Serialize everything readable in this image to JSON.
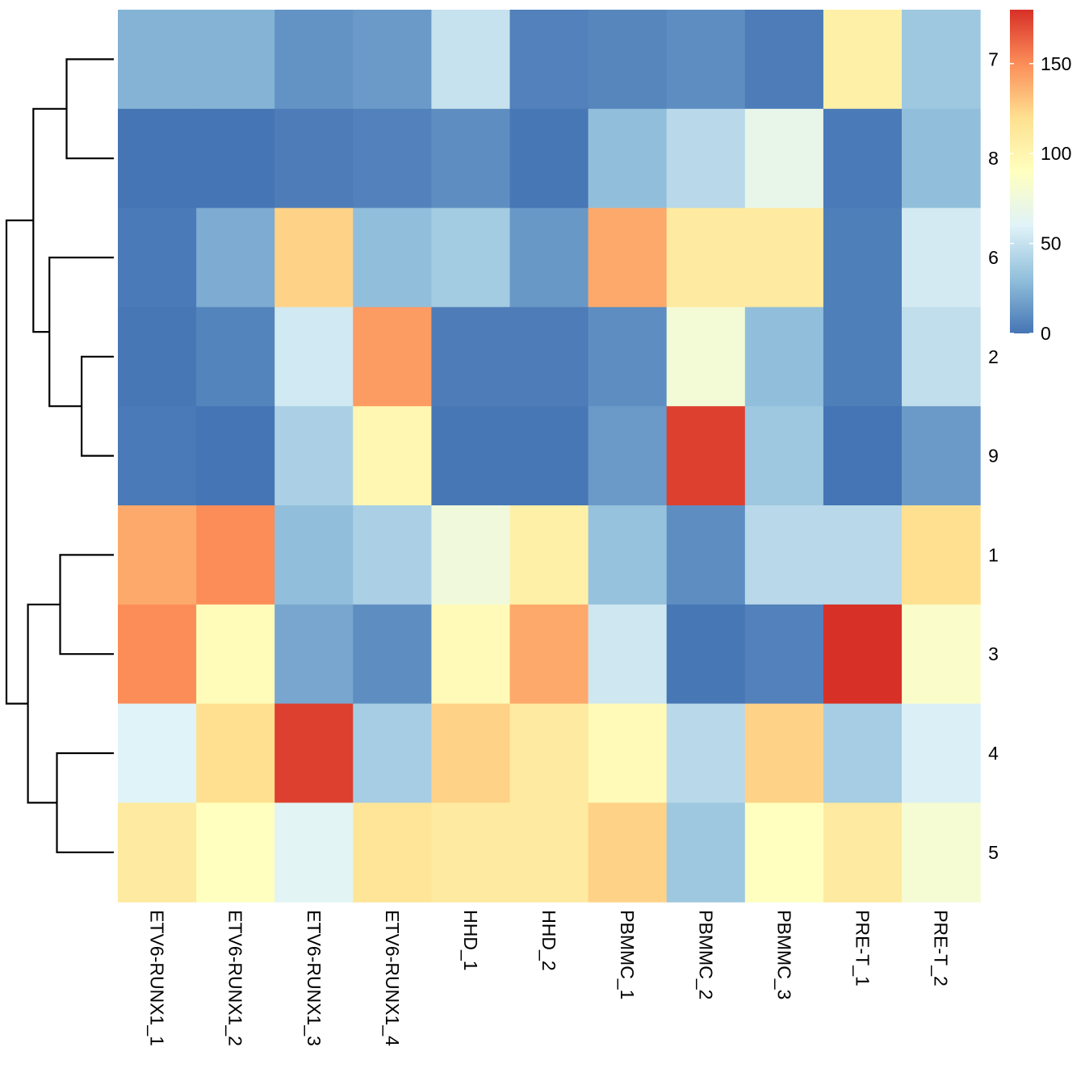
{
  "chart_data": {
    "type": "heatmap",
    "title": "",
    "columns": [
      "ETV6-RUNX1_1",
      "ETV6-RUNX1_2",
      "ETV6-RUNX1_3",
      "ETV6-RUNX1_4",
      "HHD_1",
      "HHD_2",
      "PBMMC_1",
      "PBMMC_2",
      "PBMMC_3",
      "PRE-T_1",
      "PRE-T_2"
    ],
    "rows": [
      "7",
      "8",
      "6",
      "2",
      "9",
      "1",
      "3",
      "4",
      "5"
    ],
    "values": [
      [
        25,
        25,
        12,
        15,
        50,
        5,
        7,
        10,
        3,
        105,
        35
      ],
      [
        0,
        0,
        3,
        5,
        10,
        1,
        30,
        45,
        68,
        2,
        30
      ],
      [
        2,
        22,
        125,
        30,
        37,
        14,
        140,
        110,
        110,
        4,
        55
      ],
      [
        1,
        6,
        54,
        145,
        3,
        3,
        10,
        78,
        30,
        4,
        48
      ],
      [
        2,
        0,
        40,
        98,
        1,
        1,
        15,
        175,
        35,
        0,
        15
      ],
      [
        140,
        150,
        30,
        40,
        75,
        105,
        32,
        10,
        45,
        45,
        120
      ],
      [
        150,
        93,
        20,
        10,
        95,
        140,
        53,
        1,
        5,
        180,
        85
      ],
      [
        60,
        120,
        175,
        38,
        125,
        110,
        95,
        45,
        125,
        38,
        58
      ],
      [
        110,
        90,
        62,
        115,
        110,
        110,
        125,
        35,
        90,
        110,
        80
      ]
    ],
    "legend": {
      "position": "right",
      "ticks": [
        0,
        50,
        100,
        150
      ],
      "min": 0,
      "max": 180,
      "colors": [
        "#4575B4",
        "#91BFDB",
        "#E0F3F8",
        "#FFFFBF",
        "#FEE090",
        "#FC8D59",
        "#D73027"
      ]
    },
    "row_dendrogram": {
      "leaf_order": [
        "7",
        "8",
        "6",
        "2",
        "9",
        "1",
        "3",
        "4",
        "5"
      ],
      "merges": [
        [
          -1,
          -2,
          0.44
        ],
        [
          -4,
          -5,
          0.3
        ],
        [
          -3,
          2,
          0.6
        ],
        [
          1,
          3,
          0.75
        ],
        [
          -6,
          -7,
          0.5
        ],
        [
          -8,
          -9,
          0.53
        ],
        [
          5,
          6,
          0.8
        ],
        [
          4,
          7,
          1.0
        ]
      ]
    }
  }
}
